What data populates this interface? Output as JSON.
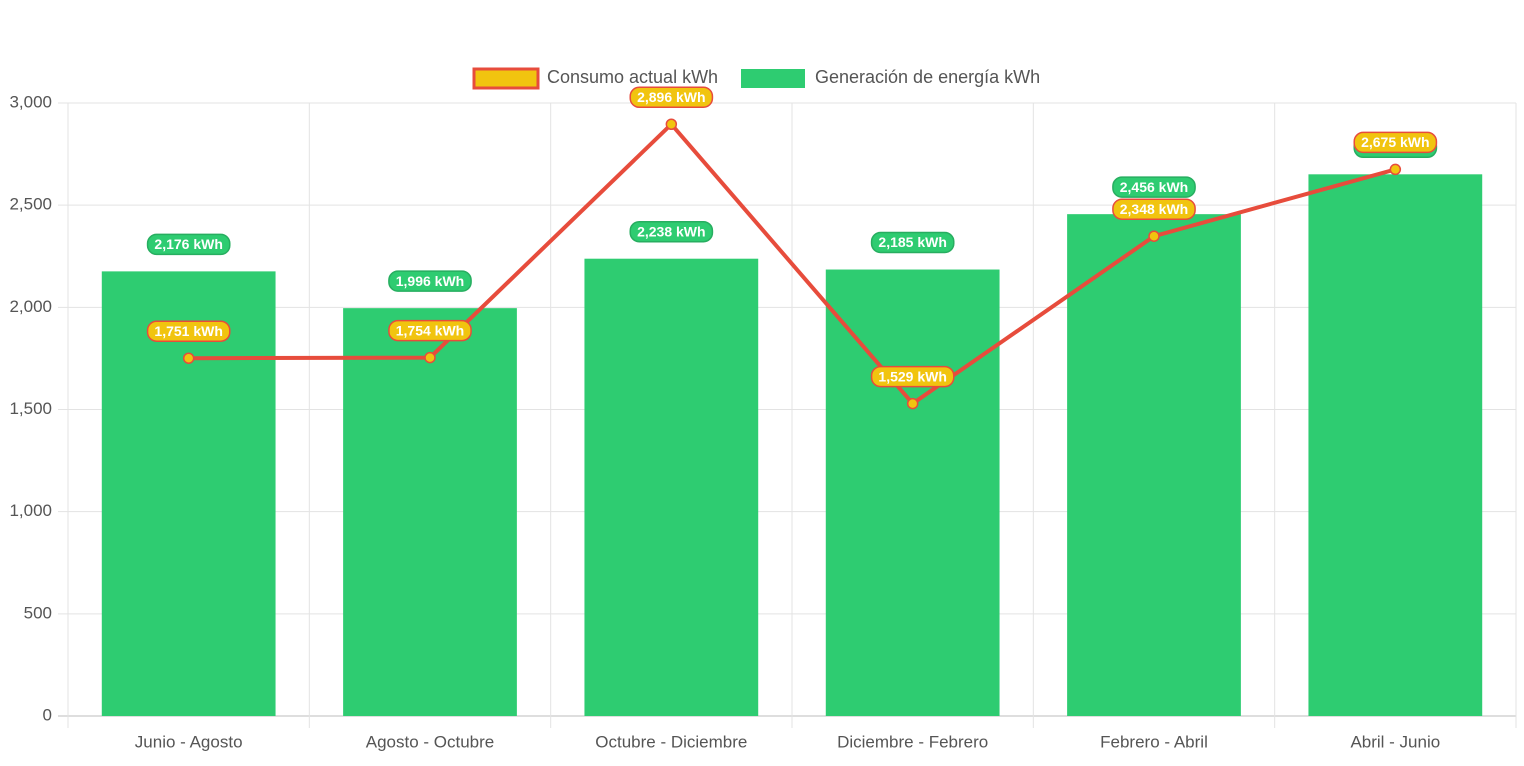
{
  "chart_data": {
    "type": "bar",
    "categories": [
      "Junio - Agosto",
      "Agosto - Octubre",
      "Octubre - Diciembre",
      "Diciembre - Febrero",
      "Febrero - Abril",
      "Abril - Junio"
    ],
    "series": [
      {
        "name": "Consumo actual kWh",
        "type": "line",
        "values": [
          1751,
          1754,
          2896,
          1529,
          2348,
          2675
        ],
        "labels": [
          "1,751 kWh",
          "1,754 kWh",
          "2,896 kWh",
          "1,529 kWh",
          "2,348 kWh",
          "2,675 kWh"
        ],
        "color": "#e74c3c",
        "fill": "#f1c40f"
      },
      {
        "name": "Generación de energía kWh",
        "type": "bar",
        "values": [
          2176,
          1996,
          2238,
          2185,
          2456,
          2651
        ],
        "labels": [
          "2,176 kWh",
          "1,996 kWh",
          "2,238 kWh",
          "2,185 kWh",
          "2,456 kWh",
          ""
        ],
        "color": "#2ecc71"
      }
    ],
    "ylim": [
      0,
      3000
    ],
    "yticks": [
      0,
      500,
      1000,
      1500,
      2000,
      2500,
      3000
    ],
    "ytick_labels": [
      "0",
      "500",
      "1,000",
      "1,500",
      "2,000",
      "2,500",
      "3,000"
    ],
    "grid": true,
    "legend_position": "top"
  }
}
